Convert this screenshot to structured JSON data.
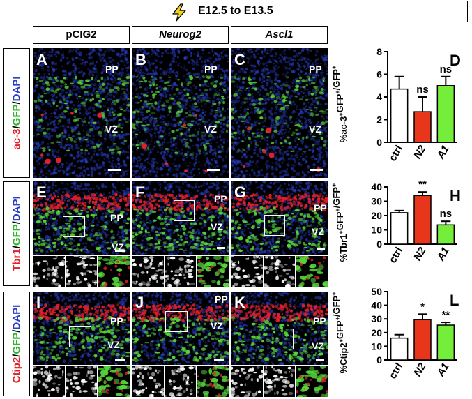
{
  "banner": {
    "text": "E12.5 to E13.5",
    "icon": "lightning-bolt-icon",
    "icon_color": "#f3d21b"
  },
  "conditions": [
    {
      "label": "pCIG2",
      "italic": false
    },
    {
      "label": "Neurog2",
      "italic": true
    },
    {
      "label": "Ascl1",
      "italic": true
    }
  ],
  "rows": [
    {
      "marker": "ac-3",
      "sep1": "/",
      "mid": "GFP",
      "sep2": "/",
      "dapi": "DAPI",
      "panels": [
        {
          "letter": "A",
          "zones": [
            "PP",
            "VZ"
          ]
        },
        {
          "letter": "B",
          "zones": [
            "PP",
            "VZ"
          ]
        },
        {
          "letter": "C",
          "zones": [
            "PP",
            "VZ"
          ]
        }
      ]
    },
    {
      "marker": "Tbr1",
      "sep1": "/",
      "mid": "GFP",
      "sep2": "/",
      "dapi": "DAPI",
      "panels": [
        {
          "letter": "E",
          "zones": [
            "PP",
            "VZ"
          ]
        },
        {
          "letter": "F",
          "zones": [
            "PP",
            "VZ"
          ]
        },
        {
          "letter": "G",
          "zones": [
            "PP",
            "VZ"
          ]
        }
      ]
    },
    {
      "marker": "Ctip2",
      "sep1": "/",
      "mid": "GFP",
      "sep2": "/",
      "dapi": "DAPI",
      "panels": [
        {
          "letter": "I",
          "zones": [
            "PP",
            "VZ"
          ]
        },
        {
          "letter": "J",
          "zones": [
            "PP",
            "VZ"
          ]
        },
        {
          "letter": "K",
          "zones": [
            "PP",
            "VZ"
          ]
        }
      ]
    }
  ],
  "colors": {
    "red": "#e0202a",
    "green": "#56d63a",
    "blue": "#2a3fc9",
    "ctrl": "#ffffff",
    "n2": "#e8361d",
    "a1": "#74ee3a"
  },
  "chart_data": [
    {
      "type": "bar",
      "letter": "D",
      "ylabel_parts": [
        "%ac-3",
        "+",
        "GFP",
        "+",
        "/",
        "GFP",
        "+"
      ],
      "categories": [
        "ctrl",
        "N2",
        "A1"
      ],
      "italic_categories": [
        false,
        true,
        true
      ],
      "values": [
        4.7,
        2.7,
        5.0
      ],
      "errors": [
        1.1,
        1.3,
        0.8
      ],
      "significance": [
        "",
        "ns",
        "ns"
      ],
      "ylim": [
        0,
        8
      ],
      "yticks": [
        "0",
        "2",
        "4",
        "6",
        "8"
      ]
    },
    {
      "type": "bar",
      "letter": "H",
      "ylabel_parts": [
        "%Tbr1",
        "+",
        "GFP",
        "+",
        "/",
        "GFP",
        "+"
      ],
      "categories": [
        "ctrl",
        "N2",
        "A1"
      ],
      "italic_categories": [
        false,
        true,
        true
      ],
      "values": [
        22,
        34,
        13.5
      ],
      "errors": [
        1.5,
        2.5,
        2.5
      ],
      "significance": [
        "",
        "**",
        "ns"
      ],
      "ylim": [
        0,
        40
      ],
      "yticks": [
        "0",
        "10",
        "20",
        "30",
        "40"
      ]
    },
    {
      "type": "bar",
      "letter": "L",
      "ylabel_parts": [
        "%Ctip2",
        "+",
        "GFP",
        "+",
        "/",
        "GFP",
        "+"
      ],
      "categories": [
        "ctrl",
        "N2",
        "A1"
      ],
      "italic_categories": [
        false,
        true,
        true
      ],
      "values": [
        16,
        29.5,
        25.5
      ],
      "errors": [
        2.5,
        4,
        2
      ],
      "significance": [
        "",
        "*",
        "**"
      ],
      "ylim": [
        0,
        50
      ],
      "yticks": [
        "0",
        "10",
        "20",
        "30",
        "40",
        "50"
      ]
    }
  ]
}
